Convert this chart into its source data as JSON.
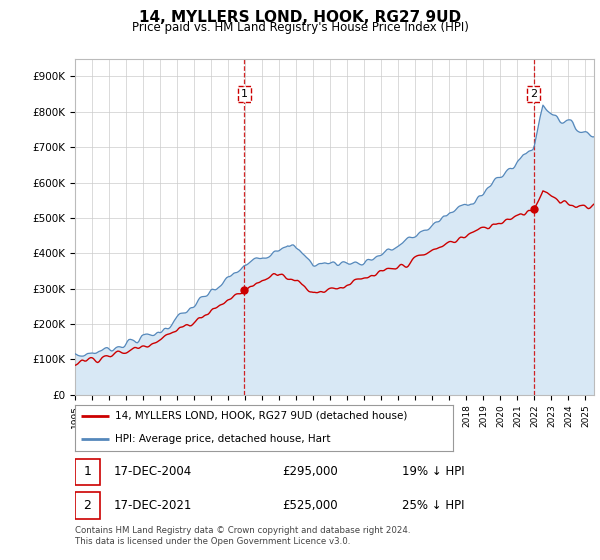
{
  "title": "14, MYLLERS LOND, HOOK, RG27 9UD",
  "subtitle": "Price paid vs. HM Land Registry's House Price Index (HPI)",
  "ylabel_ticks": [
    "£0",
    "£100K",
    "£200K",
    "£300K",
    "£400K",
    "£500K",
    "£600K",
    "£700K",
    "£800K",
    "£900K"
  ],
  "ytick_values": [
    0,
    100000,
    200000,
    300000,
    400000,
    500000,
    600000,
    700000,
    800000,
    900000
  ],
  "ylim": [
    0,
    950000
  ],
  "xlim_start": 1995.0,
  "xlim_end": 2025.5,
  "legend_line1": "14, MYLLERS LOND, HOOK, RG27 9UD (detached house)",
  "legend_line2": "HPI: Average price, detached house, Hart",
  "label1": "1",
  "label1_date": "17-DEC-2004",
  "label1_price": "£295,000",
  "label1_hpi": "19% ↓ HPI",
  "label2": "2",
  "label2_date": "17-DEC-2021",
  "label2_price": "£525,000",
  "label2_hpi": "25% ↓ HPI",
  "footnote": "Contains HM Land Registry data © Crown copyright and database right 2024.\nThis data is licensed under the Open Government Licence v3.0.",
  "sale1_x": 2004.958,
  "sale1_y": 295000,
  "sale2_x": 2021.958,
  "sale2_y": 525000,
  "vline1_x": 2004.958,
  "vline2_x": 2021.958,
  "line_color_red": "#cc0000",
  "line_color_blue": "#5588bb",
  "fill_color_blue": "#d8e8f5",
  "background_color": "#ffffff",
  "grid_color": "#cccccc"
}
